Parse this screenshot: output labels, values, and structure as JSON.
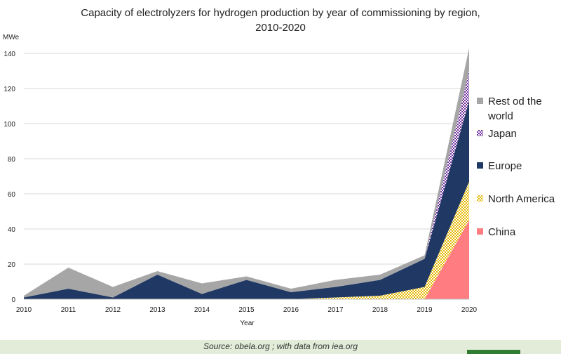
{
  "title_line1": "Capacity of electrolyzers for hydrogen production by year of commissioning by region,",
  "title_line2": "2010-2020",
  "source": "Source: obela.org ; with data from iea.org",
  "chart_data": {
    "type": "area",
    "stacked": true,
    "title": "Capacity of electrolyzers for hydrogen production by year of commissioning by region, 2010-2020",
    "xlabel": "Year",
    "ylabel": "MWe",
    "ylim": [
      0,
      140
    ],
    "yticks": [
      0,
      20,
      40,
      60,
      80,
      100,
      120,
      140
    ],
    "grid": true,
    "legend_position": "right",
    "x": [
      "2010",
      "2011",
      "2012",
      "2013",
      "2014",
      "2015",
      "2016",
      "2017",
      "2018",
      "2019",
      "2020"
    ],
    "series": [
      {
        "name": "China",
        "color": "#ff7c80",
        "pattern": "solid",
        "values": [
          0,
          0,
          0,
          0,
          0,
          0,
          0,
          0,
          0,
          0,
          45
        ]
      },
      {
        "name": "North America",
        "color": "#e6b800",
        "pattern": "checker",
        "values": [
          0,
          0,
          0,
          0,
          0,
          0,
          0,
          1,
          2,
          7,
          22
        ]
      },
      {
        "name": "Europe",
        "color": "#1f3864",
        "pattern": "solid",
        "values": [
          1,
          6,
          1,
          14,
          3,
          11,
          4,
          6,
          9,
          16,
          46
        ]
      },
      {
        "name": "Japan",
        "color": "#7030a0",
        "pattern": "checker",
        "values": [
          0,
          0,
          0,
          0,
          0,
          0,
          0,
          0,
          0,
          0,
          17
        ]
      },
      {
        "name": "Rest od the world",
        "color": "#a6a6a6",
        "pattern": "solid",
        "values": [
          1,
          12,
          6,
          2,
          6,
          2,
          2,
          4,
          3,
          2,
          13
        ]
      }
    ],
    "legend_order": [
      "Rest od the world",
      "Japan",
      "Europe",
      "North America",
      "China"
    ]
  }
}
